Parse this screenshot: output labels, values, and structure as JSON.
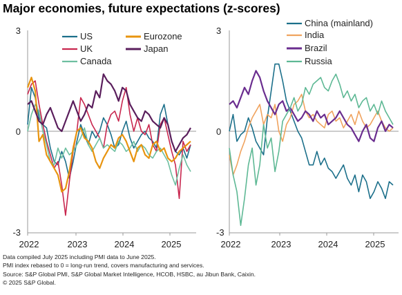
{
  "title": "Major economies, future expectations (z-scores)",
  "footnotes": [
    "Data compiled July 2025 including PMI data to June 2025.",
    "PMI index rebased to 0 = long-run trend, covers manufacturing and services.",
    "Source: S&P Global PMI, S&P Global Market Intelligence, HCOB, HSBC, au Jibun Bank, Caixin.",
    "© 2025 S&P Global."
  ],
  "chart_data": [
    {
      "type": "line",
      "x_ticks": [
        "2022",
        "2023",
        "2024",
        "2025"
      ],
      "y_ticks": [
        3,
        0,
        -3
      ],
      "y_tick_labels": [
        "3",
        "0",
        "-3"
      ],
      "ylim": [
        -3,
        3
      ],
      "grid": false,
      "legend": "top",
      "x_start": 2022.0,
      "x_step": 0.0833333,
      "series": [
        {
          "name": "US",
          "color": "#1B6F8A",
          "values": [
            0.2,
            1.3,
            1.0,
            0.4,
            0.2,
            0.1,
            -0.5,
            -0.9,
            -1.0,
            -0.6,
            -0.9,
            -1.4,
            -0.9,
            -0.3,
            0.2,
            -0.1,
            -0.4,
            0.0,
            -0.2,
            0.0,
            0.4,
            0.2,
            -0.1,
            -0.5,
            -0.4,
            0.0,
            0.3,
            -0.2,
            -0.5,
            -0.3,
            -0.1,
            0.0,
            -0.2,
            -0.3,
            -0.5,
            0.5,
            0.8,
            0.2,
            -0.3,
            -0.6,
            -0.7,
            -0.5,
            -0.8,
            -0.4
          ]
        },
        {
          "name": "UK",
          "color": "#C8264E",
          "values": [
            1.1,
            1.4,
            1.5,
            0.8,
            0.2,
            -0.3,
            -0.7,
            -1.1,
            -0.9,
            -1.6,
            -2.5,
            -1.5,
            -0.6,
            0.0,
            1.0,
            0.8,
            0.5,
            0.2,
            0.0,
            -0.2,
            -0.5,
            0.2,
            0.5,
            0.6,
            0.3,
            0.9,
            1.3,
            0.5,
            0.0,
            0.4,
            0.0,
            -0.1,
            0.2,
            -0.4,
            -0.6,
            0.2,
            0.4,
            -0.1,
            -0.6,
            -1.0,
            -2.0,
            -0.3,
            -0.6,
            -0.4
          ]
        },
        {
          "name": "Canada",
          "color": "#6DBFA0",
          "values": [
            0.0,
            0.5,
            0.8,
            0.6,
            0.0,
            -0.4,
            -0.9,
            -1.0,
            -0.5,
            -0.8,
            -0.5,
            -0.7,
            -0.6,
            -0.4,
            -0.2,
            0.1,
            -0.4,
            -0.6,
            -0.4,
            -0.2,
            -0.5,
            -0.4,
            -0.5,
            -0.6,
            -0.3,
            -0.4,
            -0.6,
            -0.5,
            -0.3,
            -0.6,
            -0.4,
            -0.5,
            -0.7,
            -0.8,
            -0.6,
            -0.5,
            -0.7,
            -0.9,
            -1.3,
            -1.6,
            -1.1,
            -0.7,
            -1.0,
            -1.2
          ]
        },
        {
          "name": "Eurozone",
          "color": "#E8940F",
          "values": [
            1.3,
            1.6,
            1.2,
            -0.3,
            -0.1,
            -0.7,
            -0.9,
            -1.1,
            -1.3,
            -1.8,
            -1.7,
            -1.2,
            -0.5,
            0.0,
            0.1,
            -0.2,
            -0.3,
            -0.5,
            -0.9,
            -1.1,
            -0.8,
            -0.6,
            -0.4,
            -0.5,
            -0.2,
            -0.1,
            -0.3,
            -0.6,
            -0.9,
            -0.5,
            -0.4,
            -0.7,
            -0.8,
            -0.4,
            -0.3,
            -0.6,
            -0.5,
            -0.8,
            -0.9,
            -0.8,
            -0.6,
            -0.5,
            -0.4,
            -0.3
          ]
        },
        {
          "name": "Japan",
          "color": "#5A1E5C",
          "values": [
            0.8,
            0.9,
            0.6,
            0.3,
            0.2,
            0.5,
            0.7,
            0.4,
            0.1,
            0.0,
            0.3,
            0.6,
            0.9,
            0.6,
            0.3,
            0.5,
            0.8,
            0.7,
            1.2,
            1.0,
            1.7,
            1.5,
            1.4,
            1.2,
            0.9,
            1.3,
            1.2,
            0.8,
            0.6,
            0.4,
            0.3,
            0.6,
            0.5,
            0.3,
            0.2,
            0.1,
            0.4,
            0.2,
            -0.3,
            -0.6,
            -0.4,
            -0.2,
            -0.1,
            0.1
          ]
        }
      ]
    },
    {
      "type": "line",
      "x_ticks": [
        "2022",
        "2023",
        "2024",
        "2025"
      ],
      "y_ticks": [
        3,
        0,
        -3
      ],
      "y_tick_labels": [
        "3",
        "0",
        "-3"
      ],
      "ylim": [
        -3,
        3
      ],
      "grid": false,
      "legend": "top",
      "x_start": 2022.0,
      "x_step": 0.0833333,
      "series": [
        {
          "name": "China (mainland)",
          "color": "#1B6F8A",
          "values": [
            0.0,
            0.5,
            -0.3,
            -0.1,
            0.0,
            0.4,
            0.1,
            -0.3,
            -0.5,
            -0.7,
            0.4,
            1.2,
            2.0,
            2.0,
            1.5,
            0.9,
            0.6,
            0.3,
            0.0,
            -0.2,
            -0.6,
            -1.0,
            -1.0,
            -0.6,
            -1.0,
            -0.8,
            -1.1,
            -1.2,
            -1.4,
            -1.2,
            -1.0,
            -1.4,
            -1.6,
            -1.3,
            -1.8,
            -1.3,
            -1.5,
            -2.0,
            -1.8,
            -1.5,
            -1.7,
            -2.0,
            -1.5,
            -1.6
          ]
        },
        {
          "name": "India",
          "color": "#F0A35E",
          "values": [
            -0.7,
            -1.3,
            -1.0,
            -0.6,
            -0.3,
            0.1,
            0.4,
            0.6,
            0.8,
            0.2,
            0.5,
            0.4,
            0.8,
            0.0,
            -0.3,
            0.2,
            0.4,
            0.8,
            0.9,
            1.1,
            0.6,
            0.4,
            0.5,
            0.3,
            0.2,
            0.1,
            0.5,
            0.6,
            0.3,
            0.4,
            0.1,
            0.3,
            0.5,
            0.2,
            0.6,
            0.3,
            0.1,
            0.2,
            0.4,
            0.6,
            0.3,
            0.1,
            0.0,
            0.1
          ]
        },
        {
          "name": "Brazil",
          "color": "#6A2D8F",
          "values": [
            0.8,
            0.9,
            0.7,
            1.0,
            1.3,
            1.1,
            1.5,
            1.8,
            1.6,
            1.2,
            0.9,
            0.7,
            0.5,
            0.8,
            0.9,
            0.6,
            0.7,
            0.5,
            0.3,
            0.4,
            0.6,
            0.5,
            0.3,
            0.6,
            0.4,
            0.5,
            0.2,
            0.3,
            0.4,
            0.6,
            0.4,
            0.2,
            0.1,
            -0.1,
            -0.3,
            0.0,
            0.2,
            -0.2,
            -0.3,
            0.1,
            0.3,
            0.0,
            0.2,
            0.1
          ]
        },
        {
          "name": "Russia",
          "color": "#5DB894",
          "values": [
            -0.5,
            -1.3,
            -1.8,
            -2.8,
            -2.0,
            -1.0,
            -0.5,
            -1.6,
            -1.0,
            0.2,
            -0.5,
            -0.2,
            -1.2,
            -0.6,
            0.3,
            0.5,
            0.7,
            1.0,
            0.6,
            0.8,
            1.3,
            1.1,
            1.4,
            1.5,
            1.6,
            1.3,
            1.2,
            1.5,
            1.7,
            1.4,
            1.0,
            1.2,
            0.9,
            1.1,
            0.7,
            0.9,
            1.0,
            0.6,
            0.8,
            0.5,
            0.9,
            0.6,
            0.4,
            0.2
          ]
        }
      ]
    }
  ]
}
